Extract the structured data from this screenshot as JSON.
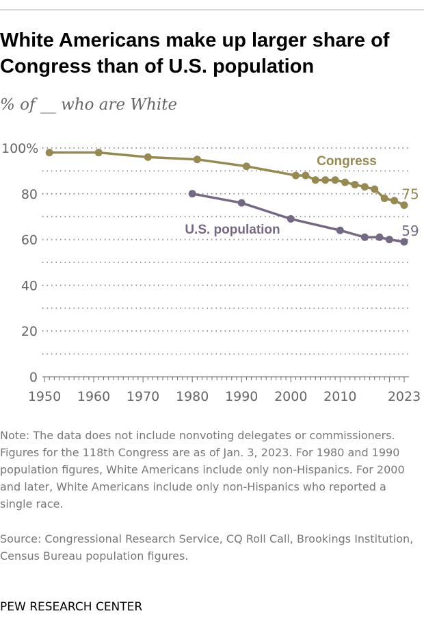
{
  "chart_data": {
    "type": "line",
    "title": "White Americans make up larger share of Congress than of U.S. population",
    "subtitle": "% of __ who are White",
    "xlim": [
      1950,
      2023
    ],
    "ylim": [
      0,
      100
    ],
    "x_ticks": [
      "1950",
      "1960",
      "1970",
      "1980",
      "1990",
      "2000",
      "2010",
      "2023"
    ],
    "y_ticks": [
      "0",
      "20",
      "40",
      "60",
      "80",
      "100%"
    ],
    "grid": true,
    "series": [
      {
        "name": "Congress",
        "color": "#968a52",
        "x": [
          1951,
          1961,
          1971,
          1981,
          1991,
          2001,
          2003,
          2005,
          2007,
          2009,
          2011,
          2013,
          2015,
          2017,
          2019,
          2021,
          2023
        ],
        "y": [
          98,
          98,
          96,
          95,
          92,
          88,
          88,
          86,
          86,
          86,
          85,
          84,
          83,
          82,
          78,
          77,
          75
        ],
        "end_label": "75"
      },
      {
        "name": "U.S. population",
        "color": "#756883",
        "x": [
          1980,
          1990,
          2000,
          2010,
          2015,
          2018,
          2020,
          2023
        ],
        "y": [
          80,
          76,
          69,
          64,
          61,
          61,
          60,
          59
        ],
        "end_label": "59"
      }
    ]
  },
  "note": "Note: The data does not include nonvoting delegates or commissioners. Figures for the 118th Congress are as of Jan. 3, 2023. For 1980 and 1990 population figures, White Americans include only non-Hispanics. For 2000 and later, White Americans include only non-Hispanics who reported a single race.",
  "source": "Source: Congressional Research Service, CQ Roll Call, Brookings Institution, Census Bureau population figures.",
  "brand": "PEW RESEARCH CENTER"
}
